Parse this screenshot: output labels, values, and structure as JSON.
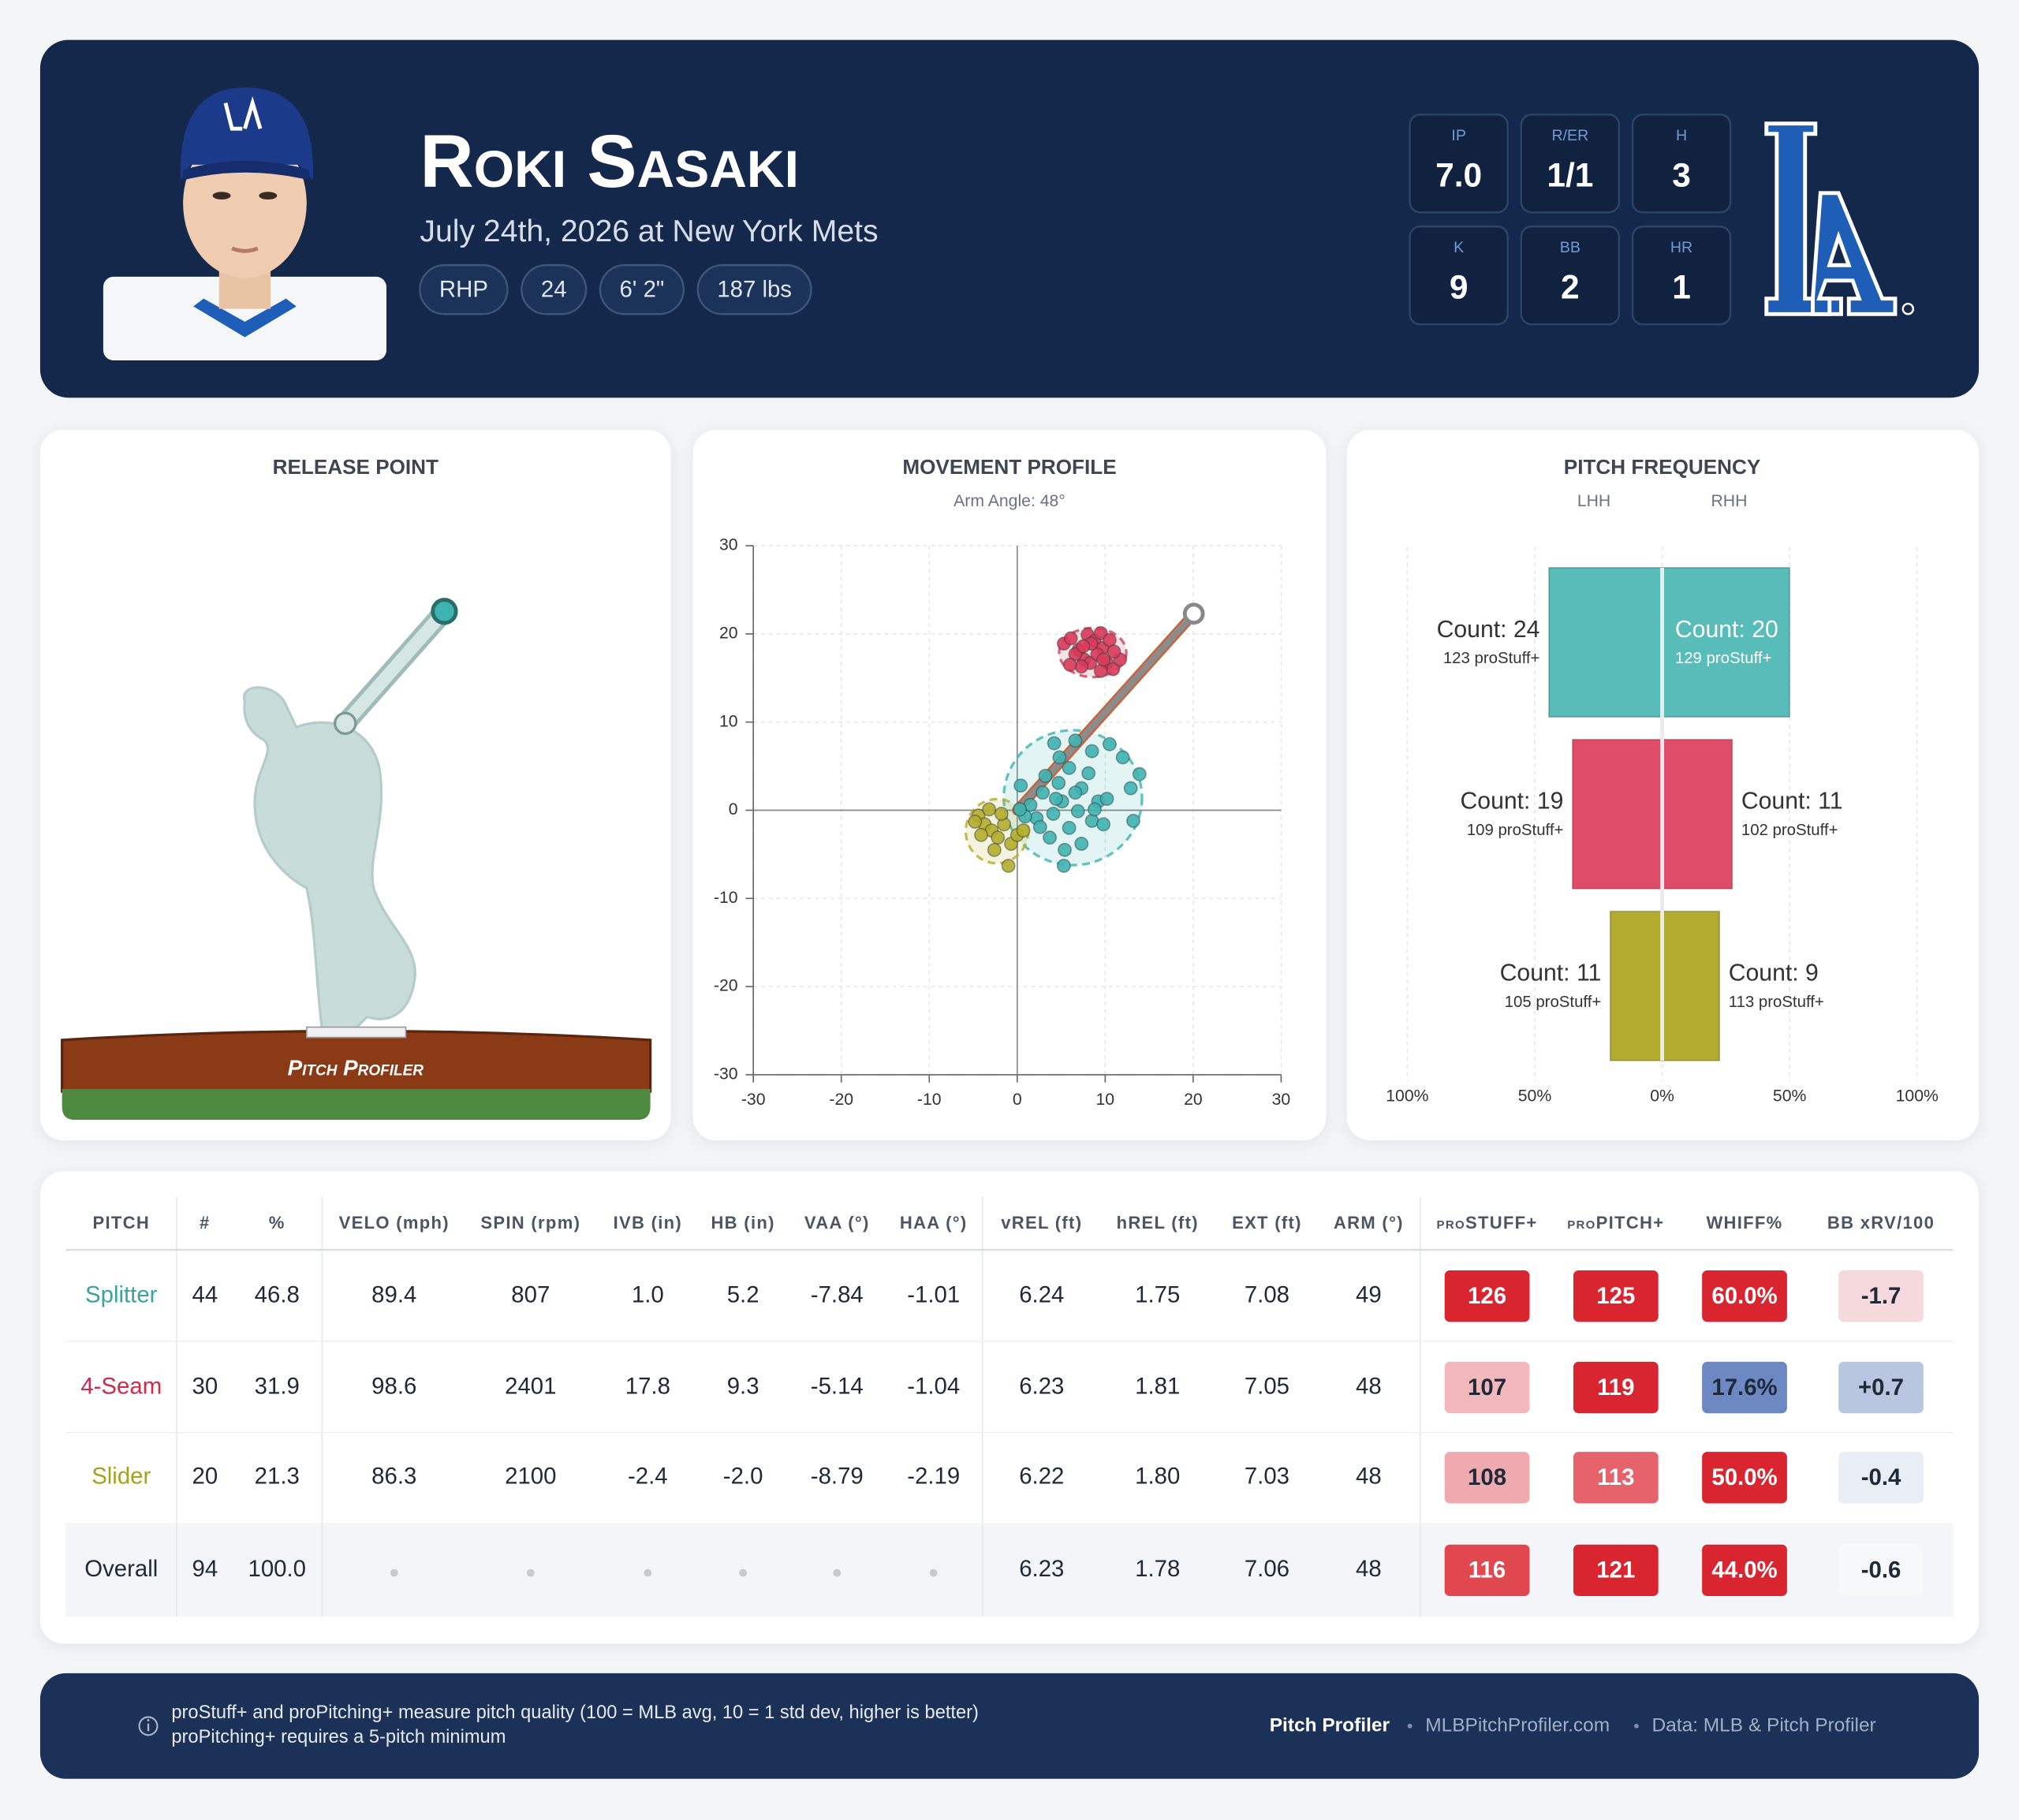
{
  "header": {
    "name": "Roki Sasaki",
    "subtitle": "July 24th, 2026 at New York Mets",
    "tags": [
      "RHP",
      "24",
      "6' 2\"",
      "187 lbs"
    ],
    "stats": [
      {
        "label": "IP",
        "value": "7.0"
      },
      {
        "label": "R/ER",
        "value": "1/1"
      },
      {
        "label": "H",
        "value": "3"
      },
      {
        "label": "K",
        "value": "9"
      },
      {
        "label": "BB",
        "value": "2"
      },
      {
        "label": "HR",
        "value": "1"
      }
    ]
  },
  "release_point": {
    "title": "RELEASE POINT",
    "brand": "Pitch Profiler"
  },
  "chart_data": [
    {
      "type": "scatter",
      "title": "MOVEMENT PROFILE",
      "subtitle": "Arm Angle: 48°",
      "arm_angle": 48,
      "xlim": [
        -30,
        30
      ],
      "ylim": [
        -30,
        30
      ],
      "xticks": [
        -30,
        -20,
        -10,
        0,
        10,
        20,
        30
      ],
      "yticks": [
        -30,
        -20,
        -10,
        0,
        10,
        20,
        30
      ],
      "grid": true,
      "series": [
        {
          "color": "#3fb3b0",
          "x": [
            4.2,
            6.6,
            8.5,
            10.5,
            12.0,
            13.9,
            12.9,
            13.2,
            9.2,
            8.5,
            6.9,
            5.9,
            5.3,
            5.4,
            7.3,
            3.7,
            2.2,
            0.9,
            0.4,
            1.5,
            3.2,
            4.7,
            5.1,
            2.9,
            9.8,
            4.1,
            5.9,
            8.1,
            7.3,
            0.3,
            2.6,
            4.8,
            8.8,
            10.2,
            4.4,
            6.6
          ],
          "values": [
            7.6,
            7.9,
            6.7,
            7.5,
            6.0,
            4.1,
            2.5,
            -1.2,
            1.0,
            -1.2,
            -0.1,
            -2.0,
            -6.3,
            -4.5,
            -3.8,
            -3.1,
            -0.9,
            -0.7,
            2.8,
            0.6,
            3.9,
            3.1,
            1.0,
            2.0,
            -1.6,
            -0.4,
            4.8,
            4.2,
            2.5,
            0.1,
            -1.9,
            6.0,
            0.1,
            1.3,
            1.3,
            2.0
          ]
        },
        {
          "color": "#d93a5a",
          "x": [
            5.3,
            6.1,
            7.0,
            8.0,
            8.8,
            9.5,
            9.7,
            7.6,
            8.3,
            9.1,
            10.2,
            10.9,
            9.5,
            7.3,
            6.6,
            10.5,
            11.7,
            8.4,
            9.8,
            7.5,
            6.0,
            11.0
          ],
          "values": [
            18.9,
            19.5,
            18.2,
            19.9,
            19.2,
            20.1,
            18.4,
            17.1,
            16.7,
            17.7,
            16.7,
            16.0,
            15.8,
            16.3,
            17.7,
            19.3,
            17.1,
            18.9,
            17.1,
            18.6,
            16.5,
            18.0
          ]
        },
        {
          "color": "#b5ad2a",
          "x": [
            -4.4,
            -3.7,
            -2.9,
            -2.2,
            -1.5,
            -0.7,
            -1.0,
            -2.6,
            -4.1,
            0.0,
            -1.8,
            -3.2,
            -4.8,
            0.7
          ],
          "values": [
            -0.6,
            -1.6,
            -2.3,
            -3.1,
            -1.6,
            -3.8,
            -6.3,
            -4.5,
            -2.8,
            -2.8,
            -0.4,
            0.1,
            -1.3,
            -2.3
          ]
        }
      ]
    },
    {
      "type": "bar",
      "orientation": "horizontal",
      "title": "PITCH FREQUENCY",
      "colors": [
        "#58bdb9",
        "#de4c67",
        "#b3ab30"
      ],
      "series": [
        {
          "name": "LHH",
          "values": [
            24,
            19,
            11
          ],
          "value_labels": [
            "Count: 24",
            "Count: 19",
            "Count: 11"
          ],
          "stuff_labels": [
            "123 proStuff+",
            "109 proStuff+",
            "105 proStuff+"
          ]
        },
        {
          "name": "RHH",
          "values": [
            20,
            11,
            9
          ],
          "value_labels": [
            "Count: 20",
            "Count: 11",
            "Count: 9"
          ],
          "stuff_labels": [
            "129 proStuff+",
            "102 proStuff+",
            "113 proStuff+"
          ]
        }
      ],
      "xlim": [
        -100,
        100
      ],
      "xticks": [
        {
          "value": -100,
          "label": "100%"
        },
        {
          "value": -50,
          "label": "50%"
        },
        {
          "value": 0,
          "label": "0%"
        },
        {
          "value": 50,
          "label": "50%"
        },
        {
          "value": 100,
          "label": "100%"
        }
      ],
      "grid": true
    }
  ],
  "table": {
    "headers": [
      "PITCH",
      "#",
      "%",
      "VELO (mph)",
      "SPIN (rpm)",
      "IVB (in)",
      "HB (in)",
      "VAA (°)",
      "HAA (°)",
      "vREL (ft)",
      "hREL (ft)",
      "EXT (ft)",
      "ARM (°)",
      "proSTUFF+",
      "proPITCH+",
      "WHIFF%",
      "BB xRV/100"
    ],
    "rows": [
      {
        "pitch": "Splitter",
        "color": "#3aa39f",
        "cells": [
          "44",
          "46.8",
          "89.4",
          "807",
          "1.0",
          "5.2",
          "-7.84",
          "-1.01",
          "6.24",
          "1.75",
          "7.08",
          "49"
        ],
        "badges": [
          {
            "text": "126",
            "bg": "#d9252f",
            "fg": "#ffffff"
          },
          {
            "text": "125",
            "bg": "#d9252f",
            "fg": "#ffffff"
          },
          {
            "text": "60.0%",
            "bg": "#d9252f",
            "fg": "#ffffff"
          },
          {
            "text": "-1.7",
            "bg": "#f6d9dc",
            "fg": "#1f2937"
          }
        ]
      },
      {
        "pitch": "4-Seam",
        "color": "#cc2b4b",
        "cells": [
          "30",
          "31.9",
          "98.6",
          "2401",
          "17.8",
          "9.3",
          "-5.14",
          "-1.04",
          "6.23",
          "1.81",
          "7.05",
          "48"
        ],
        "badges": [
          {
            "text": "107",
            "bg": "#f3b8bc",
            "fg": "#1f2937"
          },
          {
            "text": "119",
            "bg": "#d9252f",
            "fg": "#ffffff"
          },
          {
            "text": "17.6%",
            "bg": "#6c89c4",
            "fg": "#1f2937"
          },
          {
            "text": "+0.7",
            "bg": "#b8c6e0",
            "fg": "#1f2937"
          }
        ]
      },
      {
        "pitch": "Slider",
        "color": "#a6a21a",
        "cells": [
          "20",
          "21.3",
          "86.3",
          "2100",
          "-2.4",
          "-2.0",
          "-8.79",
          "-2.19",
          "6.22",
          "1.80",
          "7.03",
          "48"
        ],
        "badges": [
          {
            "text": "108",
            "bg": "#eeaaaf",
            "fg": "#1f2937"
          },
          {
            "text": "113",
            "bg": "#e6636b",
            "fg": "#ffffff"
          },
          {
            "text": "50.0%",
            "bg": "#d9252f",
            "fg": "#ffffff"
          },
          {
            "text": "-0.4",
            "bg": "#e9edf5",
            "fg": "#1f2937"
          }
        ]
      },
      {
        "pitch": "Overall",
        "color": "#1f2937",
        "cells": [
          "94",
          "100.0",
          null,
          null,
          null,
          null,
          null,
          null,
          "6.23",
          "1.78",
          "7.06",
          "48"
        ],
        "badges": [
          {
            "text": "116",
            "bg": "#e0474f",
            "fg": "#ffffff"
          },
          {
            "text": "121",
            "bg": "#d9252f",
            "fg": "#ffffff"
          },
          {
            "text": "44.0%",
            "bg": "#d9252f",
            "fg": "#ffffff"
          },
          {
            "text": "-0.6",
            "bg": "#f7f8fa",
            "fg": "#1f2937"
          }
        ]
      }
    ]
  },
  "footer": {
    "notes": [
      "proStuff+ and proPitching+ measure pitch quality (100 = MLB avg, 10 = 1 std dev, higher is better)",
      "proPitching+ requires a 5-pitch minimum"
    ],
    "links": [
      "Pitch Profiler",
      "MLBPitchProfiler.com",
      "Data: MLB & Pitch Profiler"
    ]
  }
}
